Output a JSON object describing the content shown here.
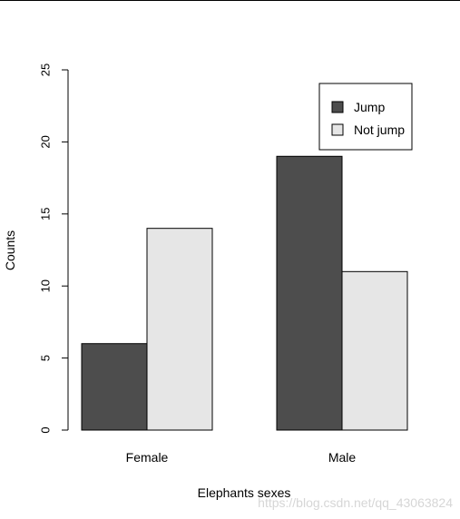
{
  "chart_data": {
    "type": "bar",
    "categories": [
      "Female",
      "Male"
    ],
    "series": [
      {
        "name": "Jump",
        "values": [
          6,
          19
        ],
        "color": "#4d4d4d"
      },
      {
        "name": "Not jump",
        "values": [
          14,
          11
        ],
        "color": "#e6e6e6"
      }
    ],
    "xlabel": "Elephants sexes",
    "ylabel": "Counts",
    "ylim": [
      0,
      25
    ],
    "yticks": [
      0,
      5,
      10,
      15,
      20,
      25
    ],
    "legend_position": "top-right",
    "grid": false
  },
  "watermark": "https://blog.csdn.net/qq_43063824"
}
